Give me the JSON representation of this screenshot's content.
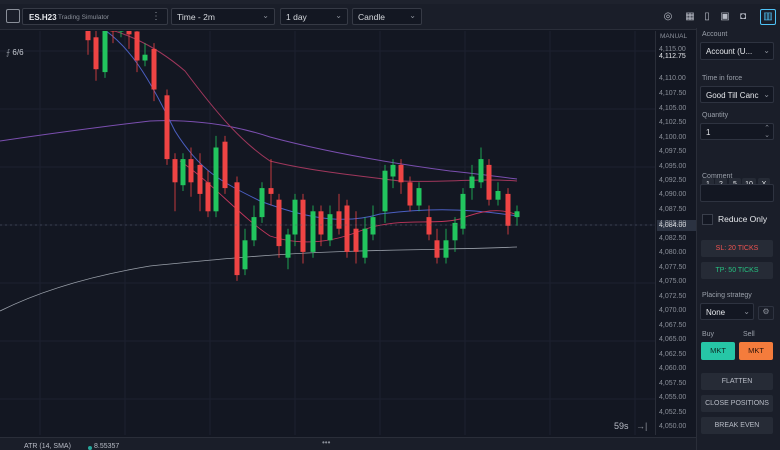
{
  "toolbar": {
    "symbol": "ES.H23",
    "symbol_sub": "Trading Simulator",
    "interval": "Time - 2m",
    "range": "1 day",
    "chart_type": "Candle"
  },
  "chart": {
    "legend_count": "6/6",
    "manual_label": "MANUAL",
    "top_price": "4,112.75",
    "last_price": "4,084.00",
    "timer": "59s",
    "ticks": [
      "4,115.00",
      "4,110.00",
      "4,107.50",
      "4,105.00",
      "4,102.50",
      "4,100.00",
      "4,097.50",
      "4,095.00",
      "4,092.50",
      "4,090.00",
      "4,087.50",
      "4,085.00",
      "4,082.50",
      "4,080.00",
      "4,077.50",
      "4,075.00",
      "4,072.50",
      "4,070.00",
      "4,067.50",
      "4,065.00",
      "4,062.50",
      "4,060.00",
      "4,057.50",
      "4,055.00",
      "4,052.50",
      "4,050.00"
    ],
    "indicator": "ATR (14, SMA)",
    "indicator_value": "8.55357",
    "colors": {
      "up": "#22c55e",
      "down": "#ef4444"
    }
  },
  "panel": {
    "account_label": "Account",
    "account_value": "Account (U...",
    "tif_label": "Time in force",
    "tif_value": "Good Till Canc",
    "quantity_label": "Quantity",
    "quantity_value": "1",
    "qty_buttons": [
      "1",
      "2",
      "5",
      "10",
      "X"
    ],
    "comment_label": "Comment",
    "reduce_only": "Reduce Only",
    "sl_label": "SL: 20 TICKS",
    "tp_label": "TP: 50 TICKS",
    "placing_label": "Placing strategy",
    "placing_value": "None",
    "buy_label": "Buy",
    "sell_label": "Sell",
    "buy_mkt": "MKT",
    "sell_mkt": "MKT",
    "flatten": "FLATTEN",
    "close_positions": "CLOSE POSITIONS",
    "break_even": "BREAK EVEN"
  }
}
